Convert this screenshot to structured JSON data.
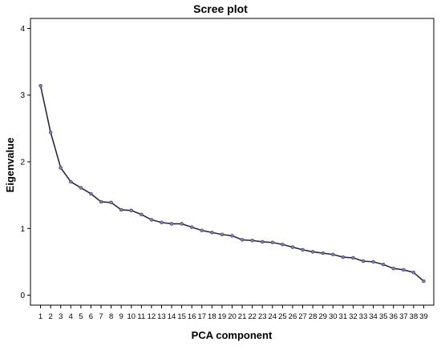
{
  "chart_data": {
    "type": "line",
    "title": "Scree plot",
    "xlabel": "PCA component",
    "ylabel": "Eigenvalue",
    "x": [
      1,
      2,
      3,
      4,
      5,
      6,
      7,
      8,
      9,
      10,
      11,
      12,
      13,
      14,
      15,
      16,
      17,
      18,
      19,
      20,
      21,
      22,
      23,
      24,
      25,
      26,
      27,
      28,
      29,
      30,
      31,
      32,
      33,
      34,
      35,
      36,
      37,
      38,
      39
    ],
    "y": [
      3.14,
      2.44,
      1.91,
      1.7,
      1.61,
      1.52,
      1.4,
      1.39,
      1.28,
      1.27,
      1.21,
      1.13,
      1.09,
      1.07,
      1.07,
      1.02,
      0.97,
      0.94,
      0.91,
      0.89,
      0.83,
      0.82,
      0.8,
      0.79,
      0.76,
      0.72,
      0.68,
      0.65,
      0.63,
      0.61,
      0.57,
      0.56,
      0.51,
      0.5,
      0.46,
      0.4,
      0.38,
      0.34,
      0.21
    ],
    "xlim": [
      0,
      40
    ],
    "ylim": [
      -0.15,
      4.15
    ],
    "yticks": [
      0,
      1,
      2,
      3,
      4
    ],
    "xticks": [
      1,
      2,
      3,
      4,
      5,
      6,
      7,
      8,
      9,
      10,
      11,
      12,
      13,
      14,
      15,
      16,
      17,
      18,
      19,
      20,
      21,
      22,
      23,
      24,
      25,
      26,
      27,
      28,
      29,
      30,
      31,
      32,
      33,
      34,
      35,
      36,
      37,
      38,
      39
    ],
    "grid": false,
    "colors": {
      "line": "#2b2b3f",
      "marker": "#7b7fc4",
      "frame": "#000000"
    }
  }
}
